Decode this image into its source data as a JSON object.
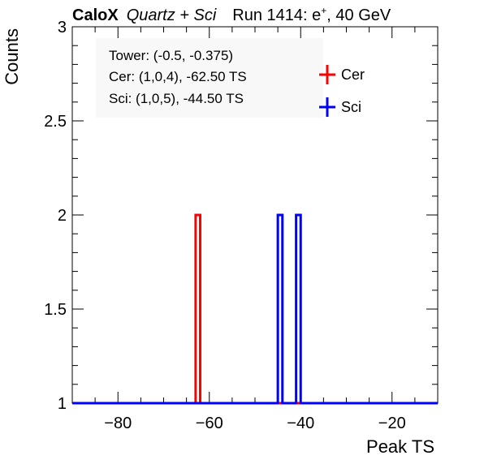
{
  "chart_data": {
    "type": "histogram-step",
    "title": {
      "experiment": "CaloX",
      "detector": "Quartz + Sci",
      "run_prefix": "Run 1414: e",
      "run_sup": "+",
      "run_suffix": ", 40 GeV"
    },
    "xlabel": "Peak TS",
    "ylabel": "Counts",
    "xlim": [
      -90,
      -10
    ],
    "ylim": [
      1,
      3
    ],
    "x_ticks": [
      -80,
      -60,
      -40,
      -20
    ],
    "x_tick_labels": [
      "−80",
      "−60",
      "−40",
      "−20"
    ],
    "y_ticks": [
      1,
      1.5,
      2,
      2.5,
      3
    ],
    "y_tick_labels": [
      "1",
      "1.5",
      "2",
      "2.5",
      "3"
    ],
    "grid": false,
    "legend_position": "top-right",
    "annotations": [
      "Tower: (-0.5, -0.375)",
      "Cer: (1,0,4), -62.50 TS",
      "Sci: (1,0,5), -44.50 TS"
    ],
    "series": [
      {
        "name": "Cer",
        "color": "#ff0000",
        "baseline": 1,
        "bins": [
          {
            "x0": -63,
            "x1": -62,
            "value": 2
          }
        ]
      },
      {
        "name": "Sci",
        "color": "#0000ff",
        "baseline": 1,
        "bins": [
          {
            "x0": -45,
            "x1": -44,
            "value": 2
          },
          {
            "x0": -41,
            "x1": -40,
            "value": 2
          }
        ]
      }
    ]
  }
}
